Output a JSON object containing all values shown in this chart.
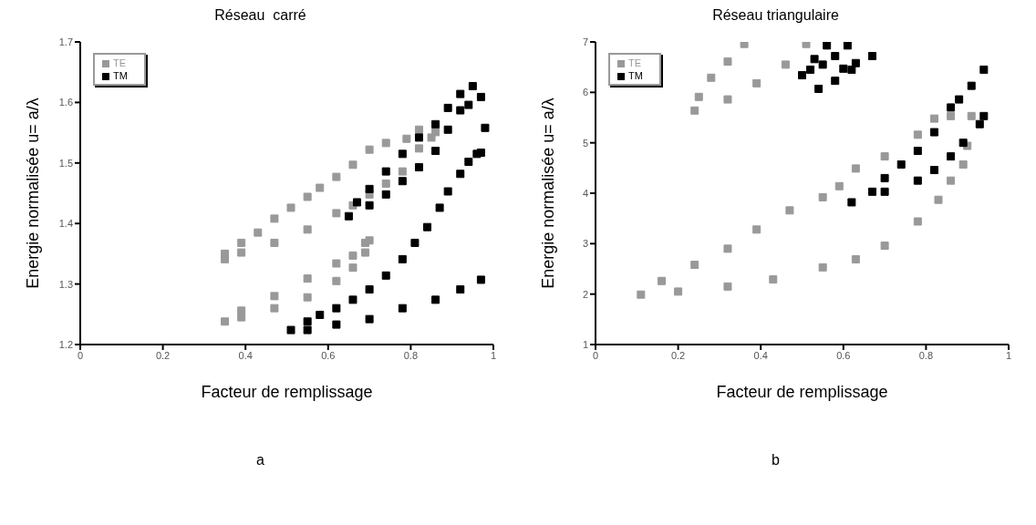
{
  "chart_data": [
    {
      "type": "scatter",
      "title": "Réseau  carré",
      "xlabel": "Facteur de remplissage",
      "ylabel": "Energie normalisée u= a/λ",
      "xlim": [
        0,
        1
      ],
      "ylim": [
        1.2,
        1.7
      ],
      "xticks": [
        0,
        0.2,
        0.4,
        0.6,
        0.8,
        1
      ],
      "yticks": [
        1.2,
        1.3,
        1.4,
        1.5,
        1.6,
        1.7
      ],
      "legend": "top left",
      "marker": "square",
      "annotations": [
        "a"
      ],
      "series": [
        {
          "name": "TE",
          "color": "#999999",
          "x": [
            0.35,
            0.35,
            0.39,
            0.43,
            0.47,
            0.51,
            0.55,
            0.58,
            0.62,
            0.66,
            0.7,
            0.74,
            0.79,
            0.39,
            0.47,
            0.55,
            0.62,
            0.66,
            0.7,
            0.74,
            0.78,
            0.82,
            0.82,
            0.85,
            0.86,
            0.35,
            0.39,
            0.47,
            0.55,
            0.62,
            0.66,
            0.69,
            0.39,
            0.47,
            0.55,
            0.62,
            0.66,
            0.69,
            0.7
          ],
          "values": [
            1.341,
            1.35,
            1.368,
            1.385,
            1.408,
            1.426,
            1.444,
            1.459,
            1.477,
            1.497,
            1.522,
            1.533,
            1.54,
            1.352,
            1.368,
            1.39,
            1.417,
            1.43,
            1.448,
            1.466,
            1.486,
            1.524,
            1.555,
            1.542,
            1.551,
            1.238,
            1.256,
            1.28,
            1.309,
            1.334,
            1.347,
            1.368,
            1.245,
            1.26,
            1.278,
            1.305,
            1.327,
            1.352,
            1.372
          ]
        },
        {
          "name": "TM",
          "color": "#000000",
          "x": [
            0.51,
            0.55,
            0.58,
            0.62,
            0.66,
            0.7,
            0.74,
            0.78,
            0.81,
            0.84,
            0.87,
            0.89,
            0.92,
            0.94,
            0.96,
            0.97,
            0.55,
            0.62,
            0.7,
            0.78,
            0.86,
            0.92,
            0.97,
            0.65,
            0.67,
            0.7,
            0.74,
            0.78,
            0.82,
            0.86,
            0.89,
            0.92,
            0.95,
            0.7,
            0.74,
            0.78,
            0.82,
            0.86,
            0.89,
            0.92,
            0.94,
            0.97,
            0.98
          ],
          "values": [
            1.224,
            1.238,
            1.249,
            1.26,
            1.274,
            1.291,
            1.314,
            1.341,
            1.368,
            1.394,
            1.426,
            1.453,
            1.482,
            1.502,
            1.515,
            1.517,
            1.224,
            1.233,
            1.242,
            1.26,
            1.274,
            1.291,
            1.307,
            1.412,
            1.435,
            1.457,
            1.486,
            1.515,
            1.542,
            1.564,
            1.591,
            1.614,
            1.627,
            1.43,
            1.448,
            1.47,
            1.493,
            1.52,
            1.555,
            1.587,
            1.596,
            1.609,
            1.558
          ]
        }
      ]
    },
    {
      "type": "scatter",
      "title": "Réseau triangulaire",
      "xlabel": "Facteur de remplissage",
      "ylabel": "Energie normalisée u= a/λ",
      "xlim": [
        0,
        1
      ],
      "ylim": [
        1,
        7
      ],
      "xticks": [
        0,
        0.2,
        0.4,
        0.6,
        0.8,
        1
      ],
      "yticks": [
        1,
        2,
        3,
        4,
        5,
        6,
        7
      ],
      "legend": "top left",
      "marker": "square",
      "annotations": [
        "b"
      ],
      "series": [
        {
          "name": "TE",
          "color": "#999999",
          "x": [
            0.11,
            0.16,
            0.24,
            0.32,
            0.39,
            0.47,
            0.55,
            0.59,
            0.63,
            0.7,
            0.78,
            0.82,
            0.86,
            0.91,
            0.2,
            0.32,
            0.43,
            0.55,
            0.63,
            0.7,
            0.78,
            0.83,
            0.86,
            0.89,
            0.9,
            0.24,
            0.25,
            0.28,
            0.32,
            0.36,
            0.32,
            0.39,
            0.46,
            0.51
          ],
          "values": [
            1.99,
            2.26,
            2.58,
            2.9,
            3.28,
            3.66,
            3.92,
            4.14,
            4.49,
            4.73,
            5.16,
            5.48,
            5.53,
            5.53,
            2.05,
            2.15,
            2.29,
            2.53,
            2.69,
            2.96,
            3.44,
            3.87,
            4.25,
            4.57,
            4.94,
            5.64,
            5.91,
            6.29,
            6.61,
            6.96,
            5.86,
            6.18,
            6.55,
            6.96
          ]
        },
        {
          "name": "TM",
          "color": "#000000",
          "x": [
            0.5,
            0.53,
            0.56,
            0.52,
            0.55,
            0.58,
            0.61,
            0.54,
            0.58,
            0.62,
            0.67,
            0.6,
            0.63,
            0.62,
            0.67,
            0.7,
            0.74,
            0.78,
            0.82,
            0.86,
            0.88,
            0.91,
            0.94,
            0.7,
            0.78,
            0.82,
            0.86,
            0.89,
            0.93,
            0.94
          ],
          "values": [
            6.34,
            6.66,
            6.93,
            6.45,
            6.55,
            6.72,
            6.93,
            6.07,
            6.23,
            6.45,
            6.72,
            6.47,
            6.58,
            3.82,
            4.03,
            4.3,
            4.57,
            4.84,
            5.21,
            5.7,
            5.86,
            6.13,
            6.45,
            4.03,
            4.25,
            4.46,
            4.73,
            5.0,
            5.37,
            5.53
          ]
        }
      ]
    }
  ]
}
